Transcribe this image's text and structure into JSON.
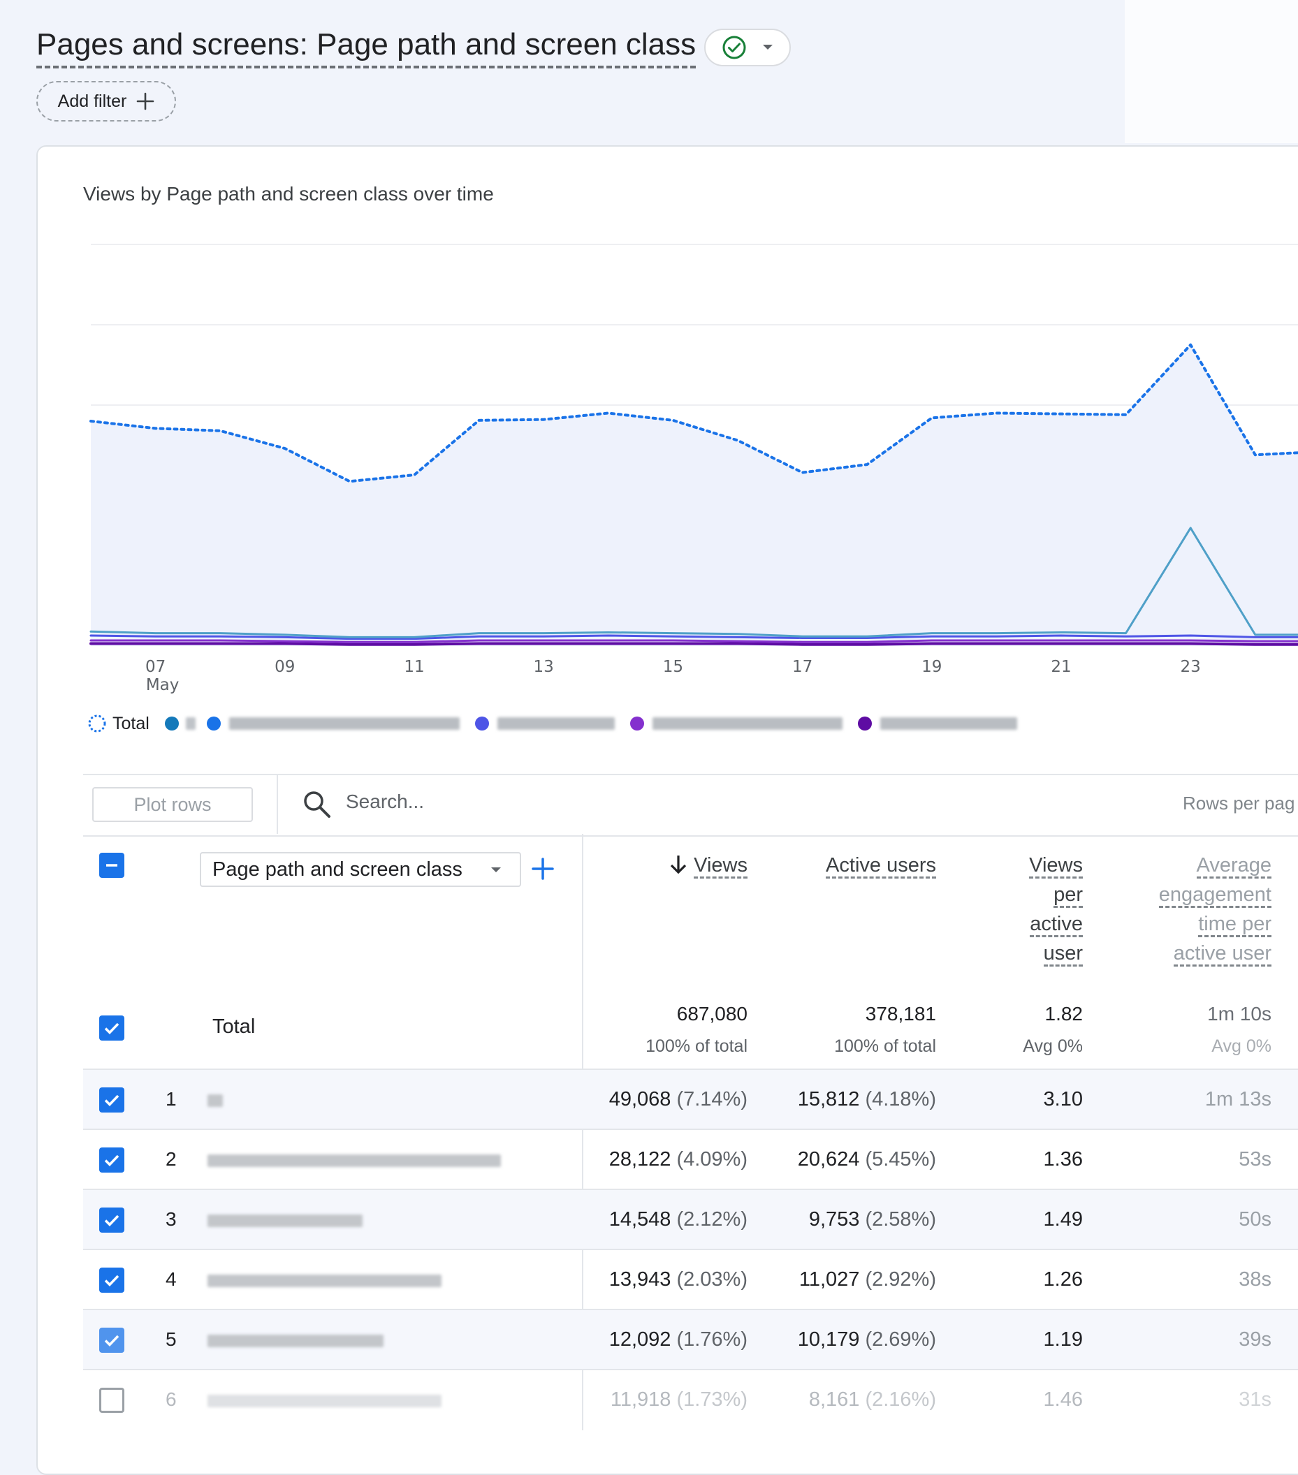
{
  "header": {
    "title": "Pages and screens: Page path and screen class",
    "add_filter_label": "Add filter"
  },
  "chart": {
    "title": "Views by Page path and screen class over time",
    "x_ticks": [
      {
        "day": "07",
        "month": "May"
      },
      {
        "day": "09",
        "month": ""
      },
      {
        "day": "11",
        "month": ""
      },
      {
        "day": "13",
        "month": ""
      },
      {
        "day": "15",
        "month": ""
      },
      {
        "day": "17",
        "month": ""
      },
      {
        "day": "19",
        "month": ""
      },
      {
        "day": "21",
        "month": ""
      },
      {
        "day": "23",
        "month": ""
      }
    ],
    "legend_total": "Total",
    "colors": {
      "total": "#1a73e8",
      "series1": "#1479ba",
      "series2": "#4e55e6",
      "series3": "#8430ce",
      "series4": "#5e0ca3",
      "spike": "#4fa0c8",
      "fill": "#eef2fc"
    }
  },
  "chart_data": {
    "type": "line",
    "x": [
      "May 06",
      "May 07",
      "May 08",
      "May 09",
      "May 10",
      "May 11",
      "May 12",
      "May 13",
      "May 14",
      "May 15",
      "May 16",
      "May 17",
      "May 18",
      "May 19",
      "May 20",
      "May 21",
      "May 22",
      "May 23",
      "May 24",
      "May 25"
    ],
    "series": [
      {
        "values": [
          28000,
          27100,
          26800,
          24600,
          20500,
          21300,
          28100,
          28200,
          29000,
          28100,
          25600,
          21600,
          22600,
          28400,
          29000,
          28900,
          28800,
          37500,
          23800,
          24200
        ]
      },
      {
        "values": [
          1800,
          1600,
          1600,
          1400,
          1100,
          1100,
          1600,
          1600,
          1700,
          1600,
          1500,
          1200,
          1200,
          1600,
          1600,
          1700,
          1600,
          14700,
          1400,
          1400
        ]
      },
      {
        "values": [
          1300,
          1200,
          1200,
          1100,
          900,
          900,
          1200,
          1200,
          1300,
          1200,
          1100,
          1000,
          1000,
          1200,
          1200,
          1300,
          1200,
          1300,
          1100,
          1100
        ]
      },
      {
        "values": [
          700,
          700,
          700,
          600,
          500,
          500,
          700,
          700,
          700,
          700,
          600,
          500,
          500,
          700,
          700,
          700,
          700,
          700,
          600,
          600
        ]
      },
      {
        "values": [
          300,
          300,
          300,
          300,
          200,
          200,
          300,
          300,
          300,
          300,
          300,
          200,
          200,
          300,
          300,
          300,
          300,
          300,
          200,
          200
        ]
      }
    ],
    "ylim": [
      0,
      50000
    ],
    "grid": true,
    "legend_position": "bottom-left"
  },
  "toolbar": {
    "plot_rows_label": "Plot rows",
    "search_placeholder": "Search...",
    "rows_per_page_label": "Rows per pag"
  },
  "table": {
    "dimension_label": "Page path and screen class",
    "columns": [
      {
        "label": "Views",
        "sorted": true
      },
      {
        "label": "Active users"
      },
      {
        "label": "Views per active user"
      },
      {
        "label": "Average engagement time per active user"
      }
    ],
    "col_views_label": "Views",
    "col_active_lines": [
      "Active users"
    ],
    "col_vpu_lines": [
      "Views",
      "per",
      "active",
      "user"
    ],
    "col_avg_lines": [
      "Average",
      "engagement",
      "time per",
      "active user"
    ],
    "total": {
      "label": "Total",
      "views": "687,080",
      "views_sub": "100% of total",
      "active_users": "378,181",
      "active_users_sub": "100% of total",
      "views_per_user": "1.82",
      "views_per_user_sub": "Avg 0%",
      "avg_time": "1m 10s",
      "avg_time_sub": "Avg 0%"
    },
    "rows": [
      {
        "num": "1",
        "checked": true,
        "views": "49,068",
        "views_pct": "(7.14%)",
        "active_users": "15,812",
        "active_pct": "(4.18%)",
        "vpu": "3.10",
        "avg_time": "1m 13s"
      },
      {
        "num": "2",
        "checked": true,
        "views": "28,122",
        "views_pct": "(4.09%)",
        "active_users": "20,624",
        "active_pct": "(5.45%)",
        "vpu": "1.36",
        "avg_time": "53s"
      },
      {
        "num": "3",
        "checked": true,
        "views": "14,548",
        "views_pct": "(2.12%)",
        "active_users": "9,753",
        "active_pct": "(2.58%)",
        "vpu": "1.49",
        "avg_time": "50s"
      },
      {
        "num": "4",
        "checked": true,
        "views": "13,943",
        "views_pct": "(2.03%)",
        "active_users": "11,027",
        "active_pct": "(2.92%)",
        "vpu": "1.26",
        "avg_time": "38s"
      },
      {
        "num": "5",
        "checked": true,
        "views": "12,092",
        "views_pct": "(1.76%)",
        "active_users": "10,179",
        "active_pct": "(2.69%)",
        "vpu": "1.19",
        "avg_time": "39s"
      },
      {
        "num": "6",
        "checked": false,
        "views": "11,918",
        "views_pct": "(1.73%)",
        "active_users": "8,161",
        "active_pct": "(2.16%)",
        "vpu": "1.46",
        "avg_time": "31s"
      }
    ]
  }
}
